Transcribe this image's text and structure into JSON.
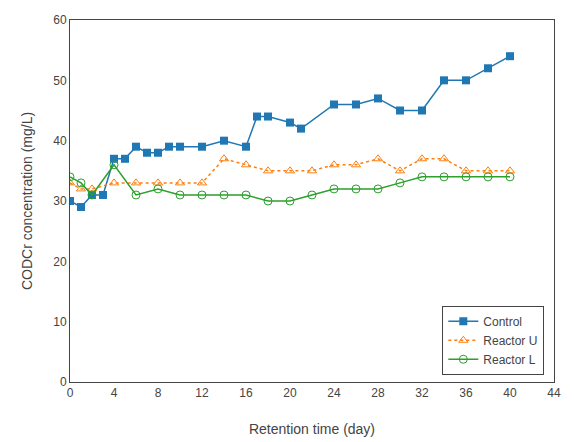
{
  "chart_data": {
    "type": "line",
    "xlabel": "Retention time (day)",
    "ylabel": "CODCr concentration (mg/L)",
    "series": [
      {
        "name": "Control",
        "marker": "square",
        "line_style": "solid",
        "x": [
          0,
          1,
          2,
          3,
          4,
          5,
          6,
          7,
          8,
          9,
          10,
          12,
          14,
          16,
          17,
          18,
          20,
          21,
          24,
          26,
          28,
          30,
          32,
          34,
          36,
          38,
          40
        ],
        "values": [
          30,
          29,
          31,
          31,
          37,
          37,
          39,
          38,
          38,
          39,
          39,
          39,
          40,
          39,
          44,
          44,
          43,
          42,
          46,
          46,
          47,
          45,
          45,
          50,
          50,
          52,
          54
        ]
      },
      {
        "name": "Reactor U",
        "marker": "triangle-up-open",
        "line_style": "dotted",
        "x": [
          0,
          1,
          2,
          4,
          6,
          8,
          10,
          12,
          14,
          16,
          18,
          20,
          22,
          24,
          26,
          28,
          30,
          32,
          34,
          36,
          38,
          40
        ],
        "values": [
          33,
          32,
          32,
          33,
          33,
          33,
          33,
          33,
          37,
          36,
          35,
          35,
          35,
          36,
          36,
          37,
          35,
          37,
          37,
          35,
          35,
          35
        ]
      },
      {
        "name": "Reactor L",
        "marker": "circle-open",
        "line_style": "solid",
        "x": [
          0,
          1,
          2,
          4,
          6,
          8,
          10,
          12,
          14,
          16,
          18,
          20,
          22,
          24,
          26,
          28,
          30,
          32,
          34,
          36,
          38,
          40
        ],
        "values": [
          34,
          33,
          31,
          36,
          31,
          32,
          31,
          31,
          31,
          31,
          30,
          30,
          31,
          32,
          32,
          32,
          33,
          34,
          34,
          34,
          34,
          34
        ]
      }
    ],
    "xlim": [
      0,
      44
    ],
    "ylim": [
      0,
      60
    ],
    "xticks": [
      0,
      4,
      8,
      12,
      16,
      20,
      24,
      28,
      32,
      36,
      40,
      44
    ],
    "yticks": [
      0,
      10,
      20,
      30,
      40,
      50,
      60
    ],
    "grid": false,
    "legend": "lower right"
  }
}
